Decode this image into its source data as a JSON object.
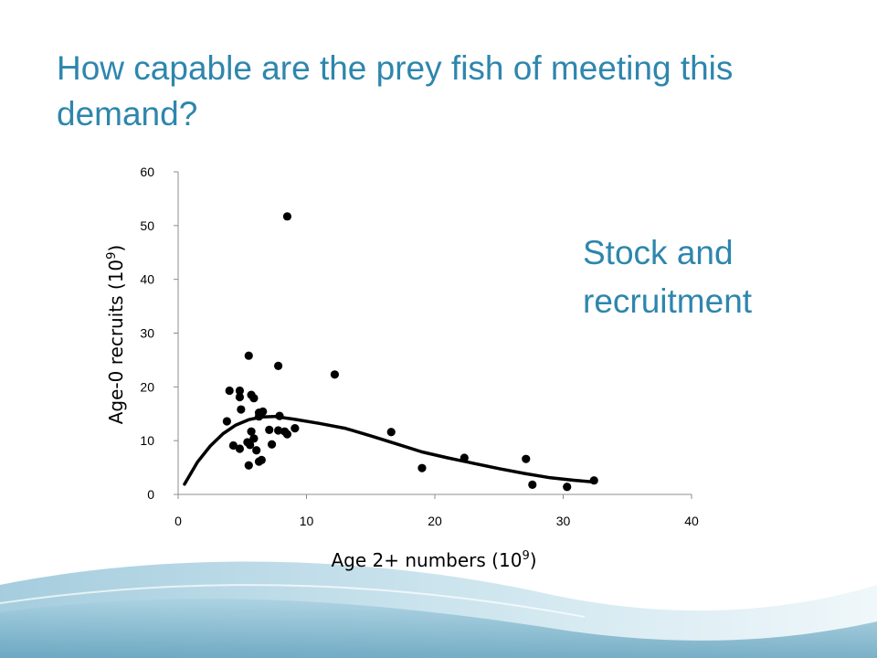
{
  "slide": {
    "title": "How capable are the prey fish of meeting this demand?",
    "side_note": "Stock and recruitment",
    "colors": {
      "title": "#2e86ad",
      "wave_dark": "#5fa5c2",
      "wave_light": "#cfe6ef"
    }
  },
  "chart_data": {
    "type": "scatter",
    "xlabel_text": "Age 2+ numbers (10",
    "xlabel_sup": "9",
    "xlabel_close": ")",
    "ylabel_text": "Age-0 recruits (10",
    "ylabel_sup": "9",
    "ylabel_close": ")",
    "xlim": [
      0,
      40
    ],
    "ylim": [
      0,
      60
    ],
    "xticks": [
      0,
      10,
      20,
      30,
      40
    ],
    "yticks": [
      0,
      10,
      20,
      30,
      40,
      50,
      60
    ],
    "grid": false,
    "series": [
      {
        "type": "scatter",
        "points": [
          [
            8.5,
            51.7
          ],
          [
            5.5,
            25.8
          ],
          [
            7.8,
            23.9
          ],
          [
            12.2,
            22.3
          ],
          [
            4.0,
            19.3
          ],
          [
            4.8,
            19.3
          ],
          [
            4.8,
            18.1
          ],
          [
            5.7,
            18.5
          ],
          [
            5.9,
            17.9
          ],
          [
            4.9,
            15.8
          ],
          [
            6.3,
            15.2
          ],
          [
            6.6,
            15.4
          ],
          [
            6.3,
            14.5
          ],
          [
            7.9,
            14.6
          ],
          [
            3.8,
            13.6
          ],
          [
            9.1,
            12.3
          ],
          [
            7.1,
            12.0
          ],
          [
            7.8,
            11.9
          ],
          [
            8.3,
            11.7
          ],
          [
            5.7,
            11.7
          ],
          [
            16.6,
            11.6
          ],
          [
            8.5,
            11.2
          ],
          [
            5.9,
            10.4
          ],
          [
            5.4,
            9.7
          ],
          [
            5.6,
            9.2
          ],
          [
            7.3,
            9.3
          ],
          [
            4.3,
            9.1
          ],
          [
            4.8,
            8.5
          ],
          [
            6.1,
            8.2
          ],
          [
            22.3,
            6.8
          ],
          [
            27.1,
            6.6
          ],
          [
            6.5,
            6.4
          ],
          [
            6.3,
            6.1
          ],
          [
            5.5,
            5.4
          ],
          [
            19.0,
            4.9
          ],
          [
            32.4,
            2.6
          ],
          [
            27.6,
            1.8
          ],
          [
            30.3,
            1.4
          ]
        ]
      },
      {
        "type": "line",
        "points": [
          [
            0.5,
            1.9
          ],
          [
            1.5,
            6.0
          ],
          [
            2.5,
            9.0
          ],
          [
            3.5,
            11.3
          ],
          [
            4.5,
            12.9
          ],
          [
            5.5,
            13.9
          ],
          [
            6.5,
            14.4
          ],
          [
            7.5,
            14.5
          ],
          [
            9.0,
            14.0
          ],
          [
            11.0,
            13.2
          ],
          [
            13.0,
            12.3
          ],
          [
            15.0,
            10.9
          ],
          [
            17.0,
            9.4
          ],
          [
            19.0,
            7.9
          ],
          [
            21.0,
            6.8
          ],
          [
            23.0,
            5.8
          ],
          [
            25.0,
            4.8
          ],
          [
            27.0,
            3.9
          ],
          [
            29.0,
            3.1
          ],
          [
            31.0,
            2.6
          ],
          [
            32.5,
            2.3
          ]
        ]
      }
    ]
  }
}
